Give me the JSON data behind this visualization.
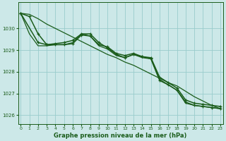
{
  "title": "Graphe pression niveau de la mer (hPa)",
  "background_color": "#cce8e8",
  "grid_color": "#99cccc",
  "line_color": "#1a5c1a",
  "xlim": [
    -0.3,
    23.3
  ],
  "ylim": [
    1025.6,
    1031.2
  ],
  "yticks": [
    1026,
    1027,
    1028,
    1029,
    1030
  ],
  "xticks": [
    0,
    1,
    2,
    3,
    4,
    5,
    6,
    7,
    8,
    9,
    10,
    11,
    12,
    13,
    14,
    15,
    16,
    17,
    18,
    19,
    20,
    21,
    22,
    23
  ],
  "series": [
    {
      "x": [
        0,
        1,
        2,
        3,
        4,
        5,
        6,
        7,
        8,
        9,
        10,
        11,
        12,
        13,
        14,
        15,
        16,
        17,
        18,
        19,
        20,
        21,
        22,
        23
      ],
      "y": [
        1030.7,
        1030.55,
        1029.75,
        1029.25,
        1029.25,
        1029.25,
        1029.3,
        1029.7,
        1029.65,
        1029.25,
        1029.15,
        1028.85,
        1028.75,
        1028.85,
        1028.7,
        1028.65,
        1027.75,
        1027.5,
        1027.25,
        1026.7,
        1026.55,
        1026.5,
        1026.45,
        1026.4
      ],
      "marker": true,
      "lw": 1.1
    },
    {
      "x": [
        0,
        1,
        2,
        3,
        4,
        5,
        6,
        7,
        8,
        9,
        10,
        11,
        12,
        13,
        14,
        15,
        16,
        17,
        18,
        19,
        20,
        21,
        22,
        23
      ],
      "y": [
        1030.7,
        1029.75,
        1029.2,
        1029.2,
        1029.25,
        1029.25,
        1029.35,
        1029.75,
        1029.65,
        1029.2,
        1029.05,
        1028.75,
        1028.65,
        1028.8,
        1028.65,
        1028.6,
        1027.65,
        1027.4,
        1027.15,
        1026.55,
        1026.45,
        1026.4,
        1026.35,
        1026.3
      ],
      "marker": false,
      "lw": 0.9
    },
    {
      "x": [
        0,
        2,
        3,
        4,
        5,
        6,
        7,
        8,
        9,
        10,
        11,
        12,
        13,
        14,
        15,
        16,
        17,
        18,
        19,
        20,
        21,
        22,
        23
      ],
      "y": [
        1030.7,
        1029.35,
        1029.25,
        1029.3,
        1029.35,
        1029.45,
        1029.75,
        1029.75,
        1029.35,
        1029.1,
        1028.8,
        1028.65,
        1028.8,
        1028.7,
        1028.6,
        1027.6,
        1027.4,
        1027.15,
        1026.6,
        1026.45,
        1026.4,
        1026.35,
        1026.3
      ],
      "marker": true,
      "lw": 1.1
    },
    {
      "x": [
        0,
        1,
        2,
        3,
        4,
        5,
        6,
        7,
        8,
        9,
        10,
        11,
        12,
        13,
        14,
        15,
        16,
        17,
        18,
        19,
        20,
        21,
        22,
        23
      ],
      "y": [
        1030.7,
        1030.65,
        1030.45,
        1030.2,
        1030.0,
        1029.8,
        1029.6,
        1029.4,
        1029.2,
        1029.0,
        1028.8,
        1028.65,
        1028.45,
        1028.3,
        1028.1,
        1027.9,
        1027.7,
        1027.5,
        1027.35,
        1027.1,
        1026.85,
        1026.65,
        1026.45,
        1026.3
      ],
      "marker": false,
      "lw": 0.9
    }
  ]
}
